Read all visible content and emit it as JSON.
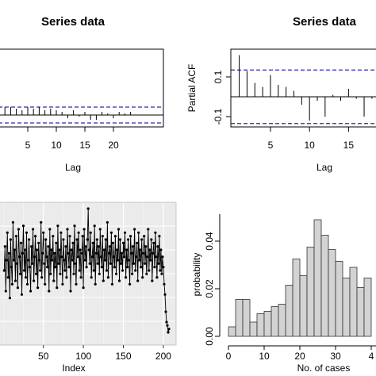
{
  "chart_data": [
    {
      "type": "bar",
      "title": "Series  data",
      "xlabel": "Lag",
      "ylabel": "",
      "xticks": [
        5,
        10,
        15,
        20
      ],
      "lags": [
        1,
        2,
        3,
        4,
        5,
        6,
        7,
        8,
        9,
        10,
        11,
        12,
        13,
        14,
        15,
        16,
        17,
        18,
        19,
        20,
        21,
        22,
        23
      ],
      "values": [
        0.05,
        0.05,
        0.04,
        0.03,
        0.05,
        0.04,
        0.05,
        0.03,
        0.04,
        0.03,
        0.02,
        -0.02,
        0.03,
        -0.01,
        0.02,
        -0.03,
        -0.03,
        0.02,
        0.01,
        -0.02,
        0.02,
        0.01,
        0.02
      ],
      "ci": 0.05
    },
    {
      "type": "bar",
      "title": "Series  data",
      "xlabel": "Lag",
      "ylabel": "Partial ACF",
      "xticks": [
        5,
        10,
        15
      ],
      "yticks": [
        "0.1",
        "-0.1"
      ],
      "lags": [
        1,
        2,
        3,
        4,
        5,
        6,
        7,
        8,
        9,
        10,
        11,
        12,
        13,
        14,
        15,
        16,
        17,
        18,
        19
      ],
      "values": [
        0.21,
        0.13,
        0.07,
        0.05,
        0.11,
        0.06,
        0.05,
        0.03,
        -0.04,
        -0.12,
        -0.02,
        -0.1,
        0.01,
        -0.02,
        0.04,
        -0.01,
        -0.1,
        -0.01,
        0.03
      ],
      "ci": 0.135,
      "ylim": [
        -0.125,
        0.22
      ]
    },
    {
      "type": "line",
      "title": "",
      "xlabel": "Index",
      "ylabel": "",
      "xticks": [
        50,
        100,
        150,
        200
      ],
      "x_range": [
        1,
        207
      ],
      "series": [
        {
          "values": [
            24,
            31,
            18,
            27,
            35,
            22,
            29,
            16,
            33,
            25,
            20,
            38,
            27,
            30,
            21,
            34,
            26,
            19,
            36,
            28,
            23,
            32,
            17,
            29,
            37,
            24,
            30,
            22,
            35,
            20,
            27,
            33,
            25,
            18,
            31,
            26,
            36,
            21,
            28,
            34,
            23,
            30,
            19,
            32,
            27,
            24,
            38,
            22,
            29,
            35,
            26,
            20,
            33,
            28,
            25,
            31,
            18,
            36,
            23,
            30,
            27,
            34,
            21,
            29,
            25,
            32,
            19,
            37,
            26,
            30,
            23,
            35,
            28,
            20,
            33,
            27,
            24,
            31,
            22,
            36,
            29,
            25,
            34,
            18,
            30,
            27,
            32,
            23,
            37,
            26,
            20,
            33,
            28,
            35,
            24,
            30,
            22,
            29,
            34,
            19,
            36,
            27,
            31,
            25,
            33,
            42,
            30,
            26,
            35,
            22,
            28,
            32,
            24,
            37,
            20,
            29,
            33,
            26,
            31,
            23,
            36,
            28,
            25,
            34,
            21,
            30,
            27,
            33,
            24,
            38,
            22,
            29,
            31,
            26,
            35,
            20,
            32,
            28,
            25,
            34,
            23,
            30,
            27,
            36,
            21,
            33,
            26,
            29,
            24,
            32,
            28,
            35,
            22,
            30,
            25,
            33,
            27,
            20,
            34,
            29,
            23,
            31,
            26,
            36,
            24,
            28,
            32,
            21,
            35,
            27,
            30,
            25,
            33,
            22,
            29,
            34,
            26,
            31,
            23,
            28,
            36,
            24,
            30,
            27,
            33,
            21,
            29,
            32,
            25,
            35,
            28,
            22,
            31,
            26,
            34,
            24,
            30,
            23,
            28,
            25,
            20,
            17,
            12,
            9,
            8,
            6,
            7
          ]
        }
      ]
    },
    {
      "type": "bar",
      "title": "",
      "xlabel": "No. of cases",
      "ylabel": "probability",
      "xticks": [
        "0",
        "10",
        "20",
        "30",
        "4"
      ],
      "yticks": [
        "0.00",
        "0.02",
        "0.04"
      ],
      "bin_width": 2,
      "bin_starts": [
        0,
        2,
        4,
        6,
        8,
        10,
        12,
        14,
        16,
        18,
        20,
        22,
        24,
        26,
        28,
        30,
        32,
        34,
        36,
        38
      ],
      "values": [
        0.004,
        0.0155,
        0.0155,
        0.006,
        0.0095,
        0.0105,
        0.0125,
        0.0135,
        0.0215,
        0.0325,
        0.0255,
        0.0375,
        0.049,
        0.0425,
        0.0365,
        0.0315,
        0.0245,
        0.029,
        0.0205,
        0.0245
      ],
      "ylim": [
        0,
        0.05
      ]
    }
  ]
}
